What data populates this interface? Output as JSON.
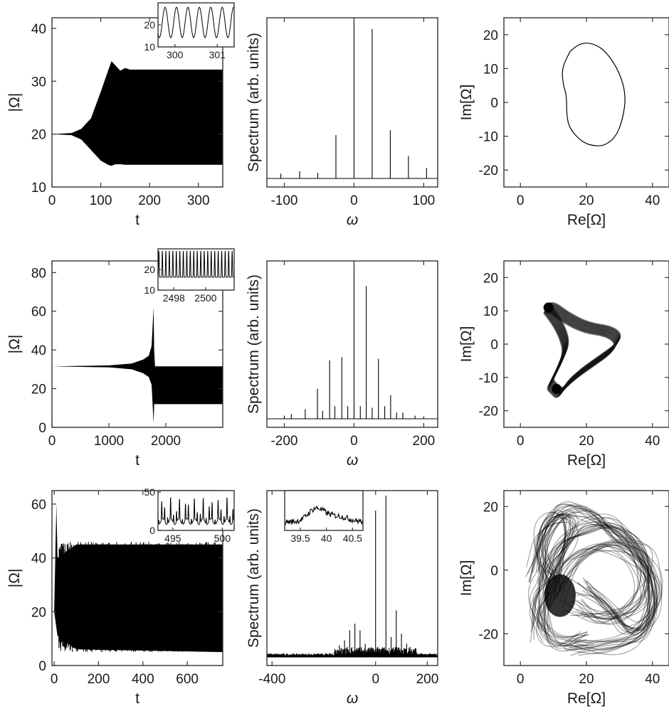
{
  "chart_data": [
    {
      "id": "a1",
      "type": "line",
      "xlabel": "t",
      "ylabel": "|Ω|",
      "xlim": [
        0,
        350
      ],
      "ylim": [
        10,
        42
      ],
      "xticks": [
        0,
        100,
        200,
        300
      ],
      "yticks": [
        10,
        20,
        30,
        40
      ],
      "envelope": [
        [
          0,
          20,
          20
        ],
        [
          40,
          20.2,
          19.8
        ],
        [
          60,
          21,
          19
        ],
        [
          80,
          23,
          17
        ],
        [
          100,
          28,
          15
        ],
        [
          115,
          32,
          14.2
        ],
        [
          122,
          33.8,
          14
        ],
        [
          130,
          33,
          14.3
        ],
        [
          140,
          32,
          14.3
        ],
        [
          150,
          32.5,
          14.2
        ],
        [
          160,
          32.2,
          14.2
        ],
        [
          200,
          32.2,
          14.2
        ],
        [
          350,
          32.2,
          14.2
        ]
      ],
      "inset": {
        "xlim": [
          299.6,
          301.4
        ],
        "ylim": [
          10,
          30
        ],
        "xticks": [
          300,
          301
        ],
        "yticks": [
          10,
          20
        ],
        "period": 0.27,
        "min": 14.2,
        "max": 28
      }
    },
    {
      "id": "a2",
      "type": "bar",
      "xlabel": "ω",
      "ylabel": "Spectrum (arb. units)",
      "xlim": [
        -125,
        120
      ],
      "ylim": [
        0,
        1
      ],
      "xticks": [
        -100,
        0,
        100
      ],
      "x": [
        -105,
        -78,
        -52,
        -26,
        0,
        26,
        52,
        78,
        104
      ],
      "values": [
        0.03,
        0.045,
        0.035,
        0.27,
        1.0,
        0.93,
        0.3,
        0.14,
        0.065
      ]
    },
    {
      "id": "a3",
      "type": "scatter",
      "xlabel": "Re[Ω]",
      "ylabel": "Im[Ω]",
      "xlim": [
        -5,
        45
      ],
      "ylim": [
        -25,
        25
      ],
      "xticks": [
        0,
        20,
        40
      ],
      "yticks": [
        -20,
        -10,
        0,
        10,
        20
      ],
      "curve": [
        [
          15,
          15
        ],
        [
          18,
          17.5
        ],
        [
          22,
          17.5
        ],
        [
          26,
          15
        ],
        [
          30,
          9
        ],
        [
          32,
          2
        ],
        [
          31,
          -5
        ],
        [
          29,
          -10
        ],
        [
          26,
          -12.5
        ],
        [
          23,
          -13
        ],
        [
          19,
          -12
        ],
        [
          15,
          -8
        ],
        [
          14,
          -4
        ],
        [
          14,
          2
        ],
        [
          13,
          5
        ],
        [
          12.5,
          10
        ],
        [
          15,
          15
        ]
      ]
    },
    {
      "id": "b1",
      "type": "line",
      "xlabel": "t",
      "ylabel": "|Ω|",
      "xlim": [
        0,
        3000
      ],
      "ylim": [
        0,
        86
      ],
      "xticks": [
        0,
        1000,
        2000
      ],
      "yticks": [
        0,
        20,
        40,
        60,
        80
      ],
      "envelope": [
        [
          0,
          31.5,
          31.5
        ],
        [
          1000,
          32,
          31
        ],
        [
          1400,
          33,
          30
        ],
        [
          1600,
          35,
          28
        ],
        [
          1700,
          37,
          26
        ],
        [
          1750,
          42,
          22
        ],
        [
          1785,
          62,
          2
        ],
        [
          1795,
          40,
          12
        ],
        [
          1810,
          31.5,
          12
        ],
        [
          3000,
          31.5,
          12
        ]
      ],
      "inset": {
        "xlim": [
          2497,
          2501.8
        ],
        "ylim": [
          10,
          30
        ],
        "xticks": [
          2498,
          2500
        ],
        "yticks": [
          10,
          20
        ],
        "period": 0.22,
        "min": 12,
        "max": 29
      }
    },
    {
      "id": "b2",
      "type": "bar",
      "xlabel": "ω",
      "ylabel": "Spectrum (arb. units)",
      "xlim": [
        -250,
        240
      ],
      "ylim": [
        0,
        1
      ],
      "xticks": [
        -200,
        0,
        200
      ],
      "x": [
        -200,
        -180,
        -140,
        -105,
        -90,
        -70,
        -55,
        -35,
        -18,
        0,
        18,
        35,
        52,
        70,
        88,
        105,
        122,
        140,
        175,
        200
      ],
      "values": [
        0.02,
        0.03,
        0.06,
        0.19,
        0.05,
        0.37,
        0.08,
        0.39,
        0.08,
        1.0,
        0.08,
        0.84,
        0.07,
        0.38,
        0.08,
        0.15,
        0.04,
        0.04,
        0.02,
        0.015
      ]
    },
    {
      "id": "b3",
      "type": "scatter",
      "xlabel": "Re[Ω]",
      "ylabel": "Im[Ω]",
      "xlim": [
        -5,
        45
      ],
      "ylim": [
        -25,
        25
      ],
      "xticks": [
        0,
        20,
        40
      ],
      "yticks": [
        -20,
        -10,
        0,
        10,
        20
      ],
      "curve": [
        [
          8,
          11
        ],
        [
          10,
          11
        ],
        [
          14,
          8
        ],
        [
          20,
          5
        ],
        [
          27,
          4
        ],
        [
          30,
          1.5
        ],
        [
          28,
          -1.5
        ],
        [
          23,
          -5
        ],
        [
          18,
          -8.5
        ],
        [
          14,
          -12
        ],
        [
          12,
          -15
        ],
        [
          10,
          -13
        ],
        [
          9,
          -12
        ],
        [
          10,
          -10
        ],
        [
          12,
          -6
        ],
        [
          14,
          -1
        ],
        [
          13,
          3
        ],
        [
          11,
          7
        ],
        [
          8,
          11
        ]
      ]
    },
    {
      "id": "c1",
      "type": "line",
      "xlabel": "t",
      "ylabel": "|Ω|",
      "xlim": [
        -10,
        760
      ],
      "ylim": [
        0,
        65
      ],
      "xticks": [
        0,
        200,
        400,
        600
      ],
      "yticks": [
        0,
        20,
        40,
        60
      ],
      "envelope": [
        [
          0,
          20,
          20
        ],
        [
          10,
          60,
          14
        ],
        [
          15,
          40,
          11
        ],
        [
          100,
          45,
          6
        ],
        [
          760,
          45,
          5
        ]
      ],
      "inset": {
        "xlim": [
          493.5,
          501.2
        ],
        "ylim": [
          0,
          52
        ],
        "xticks": [
          495,
          500
        ],
        "yticks": [
          0,
          50
        ],
        "period": 0.3,
        "min": 6,
        "max": 43
      }
    },
    {
      "id": "c2",
      "type": "bar",
      "xlabel": "ω",
      "ylabel": "Spectrum (arb. units)",
      "xlim": [
        -420,
        240
      ],
      "ylim": [
        0,
        1
      ],
      "xticks": [
        -400,
        0,
        200
      ],
      "x": [
        -140,
        -120,
        -100,
        -80,
        -60,
        -40,
        0,
        40,
        60,
        80,
        100,
        120
      ],
      "values": [
        0.07,
        0.1,
        0.16,
        0.2,
        0.16,
        0.08,
        0.88,
        0.97,
        0.12,
        0.28,
        0.14,
        0.08
      ],
      "inset": {
        "xlim": [
          39.2,
          40.7
        ],
        "xticks": [
          39.5,
          40,
          40.5
        ],
        "xticklabels": [
          "39.5",
          "40",
          "40.5"
        ]
      }
    },
    {
      "id": "c3",
      "type": "scatter",
      "xlabel": "Re[Ω]",
      "ylabel": "Im[Ω]",
      "xlim": [
        -5,
        45
      ],
      "ylim": [
        -30,
        25
      ],
      "xticks": [
        0,
        20,
        40
      ],
      "yticks": [
        -20,
        0,
        20
      ]
    }
  ]
}
